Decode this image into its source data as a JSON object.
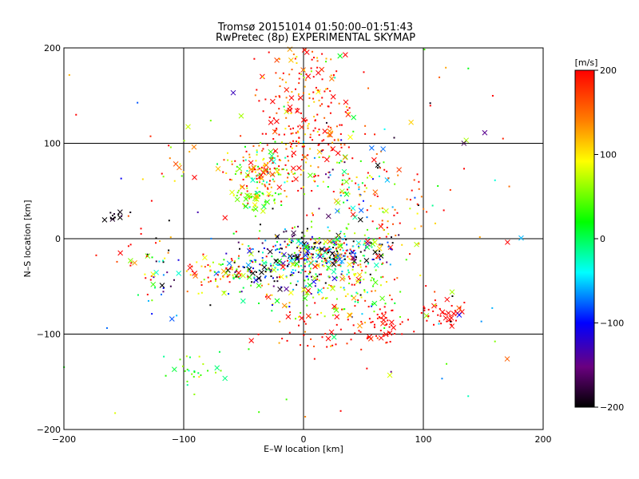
{
  "chart_data": {
    "type": "scatter",
    "title": "Tromsø 20151014 01:50:00–01:51:43",
    "subtitle": "RwPretec (8p) EXPERIMENTAL SKYMAP",
    "xlabel": "E–W location [km]",
    "ylabel": "N–S location [km]",
    "xlim": [
      -200,
      200
    ],
    "ylim": [
      -200,
      200
    ],
    "x_ticks": [
      -200,
      -100,
      0,
      100,
      200
    ],
    "y_ticks": [
      -200,
      -100,
      0,
      100,
      200
    ],
    "grid": true,
    "colorbar": {
      "label": "[m/s]",
      "range": [
        -200,
        200
      ],
      "ticks": [
        200,
        100,
        0,
        -100,
        -200
      ],
      "colormap": "black-purple-blue-cyan-green-yellow-red"
    },
    "marker_types": [
      "dot",
      "x"
    ],
    "clusters": [
      {
        "cx": 0,
        "cy": 150,
        "sx": 18,
        "sy": 30,
        "n": 160,
        "vmean": 170,
        "vsd": 60
      },
      {
        "cx": -35,
        "cy": 70,
        "sx": 15,
        "sy": 12,
        "n": 160,
        "vmean": 120,
        "vsd": 90
      },
      {
        "cx": -40,
        "cy": 42,
        "sx": 8,
        "sy": 6,
        "n": 50,
        "vmean": 60,
        "vsd": 40
      },
      {
        "cx": 10,
        "cy": 100,
        "sx": 25,
        "sy": 20,
        "n": 90,
        "vmean": 170,
        "vsd": 60
      },
      {
        "cx": 40,
        "cy": 60,
        "sx": 25,
        "sy": 25,
        "n": 110,
        "vmean": 30,
        "vsd": 140
      },
      {
        "cx": 20,
        "cy": -15,
        "sx": 25,
        "sy": 12,
        "n": 320,
        "vmean": -20,
        "vsd": 150
      },
      {
        "cx": -25,
        "cy": -30,
        "sx": 25,
        "sy": 15,
        "n": 180,
        "vmean": -90,
        "vsd": 130
      },
      {
        "cx": -70,
        "cy": -35,
        "sx": 15,
        "sy": 10,
        "n": 70,
        "vmean": 140,
        "vsd": 80
      },
      {
        "cx": 30,
        "cy": -55,
        "sx": 28,
        "sy": 15,
        "n": 130,
        "vmean": 80,
        "vsd": 80
      },
      {
        "cx": 65,
        "cy": -90,
        "sx": 10,
        "sy": 10,
        "n": 50,
        "vmean": 190,
        "vsd": 20
      },
      {
        "cx": 115,
        "cy": -78,
        "sx": 10,
        "sy": 8,
        "n": 40,
        "vmean": 190,
        "vsd": 20
      },
      {
        "cx": -90,
        "cy": -145,
        "sx": 10,
        "sy": 12,
        "n": 25,
        "vmean": 20,
        "vsd": 40
      },
      {
        "cx": -120,
        "cy": -40,
        "sx": 10,
        "sy": 20,
        "n": 30,
        "vmean": -110,
        "vsd": 130
      },
      {
        "cx": -155,
        "cy": 22,
        "sx": 8,
        "sy": 4,
        "n": 14,
        "vmean": -195,
        "vsd": 10
      },
      {
        "cx": -100,
        "cy": 80,
        "sx": 10,
        "sy": 12,
        "n": 18,
        "vmean": 140,
        "vsd": 50
      },
      {
        "cx": 20,
        "cy": -100,
        "sx": 25,
        "sy": 12,
        "n": 40,
        "vmean": 180,
        "vsd": 40
      },
      {
        "cx": 70,
        "cy": 20,
        "sx": 20,
        "sy": 25,
        "n": 40,
        "vmean": 160,
        "vsd": 60
      },
      {
        "cx": -130,
        "cy": -10,
        "sx": 15,
        "sy": 20,
        "n": 20,
        "vmean": 170,
        "vsd": 40
      },
      {
        "cx": 0,
        "cy": 0,
        "sx": 110,
        "sy": 110,
        "n": 130,
        "vmean": 90,
        "vsd": 120
      }
    ]
  }
}
